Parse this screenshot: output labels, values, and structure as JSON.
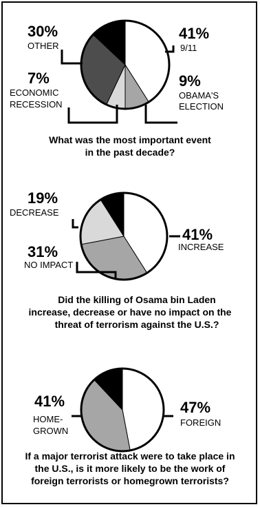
{
  "chart_data": [
    {
      "type": "pie",
      "title": "What was the most important event in the past decade?",
      "title_lines": [
        "What was the most important event",
        "in the past decade?"
      ],
      "slices": [
        {
          "label_lines": [
            "9/11"
          ],
          "pct_text": "41%",
          "value": 41,
          "color": "#ffffff"
        },
        {
          "label_lines": [
            "OBAMA'S",
            "ELECTION"
          ],
          "pct_text": "9%",
          "value": 9,
          "color": "#a6a6a6"
        },
        {
          "label_lines": [
            "ECONOMIC",
            "RECESSION"
          ],
          "pct_text": "7%",
          "value": 7,
          "color": "#d9d9d9"
        },
        {
          "label_lines": [
            "OTHER"
          ],
          "pct_text": "30%",
          "value": 30,
          "color": "#4d4d4d"
        },
        {
          "label_lines": [],
          "pct_text": "",
          "value": 13,
          "color": "#000000"
        }
      ]
    },
    {
      "type": "pie",
      "title": "Did the killing of Osama bin Laden increase, decrease or have no impact on the threat of terrorism against the U.S.?",
      "title_lines": [
        "Did the killing of Osama bin Laden",
        "increase, decrease or have no impact on the",
        "threat of terrorism against the U.S.?"
      ],
      "slices": [
        {
          "label_lines": [
            "INCREASE"
          ],
          "pct_text": "41%",
          "value": 41,
          "color": "#ffffff"
        },
        {
          "label_lines": [
            "NO IMPACT"
          ],
          "pct_text": "31%",
          "value": 31,
          "color": "#a6a6a6"
        },
        {
          "label_lines": [
            "DECREASE"
          ],
          "pct_text": "19%",
          "value": 19,
          "color": "#d9d9d9"
        },
        {
          "label_lines": [],
          "pct_text": "",
          "value": 9,
          "color": "#000000"
        }
      ]
    },
    {
      "type": "pie",
      "title": "If a major terrorist attack were to take place in the U.S., is it more likely to be the work of foreign terrorists or homegrown terrorists?",
      "title_lines": [
        "If a major terrorist attack were to take place in",
        "the U.S., is it more likely to be the work of",
        "foreign terrorists or homegrown terrorists?"
      ],
      "slices": [
        {
          "label_lines": [
            "FOREIGN"
          ],
          "pct_text": "47%",
          "value": 47,
          "color": "#ffffff"
        },
        {
          "label_lines": [
            "HOME-",
            "GROWN"
          ],
          "pct_text": "41%",
          "value": 41,
          "color": "#a6a6a6"
        },
        {
          "label_lines": [],
          "pct_text": "",
          "value": 12,
          "color": "#000000"
        }
      ]
    }
  ]
}
